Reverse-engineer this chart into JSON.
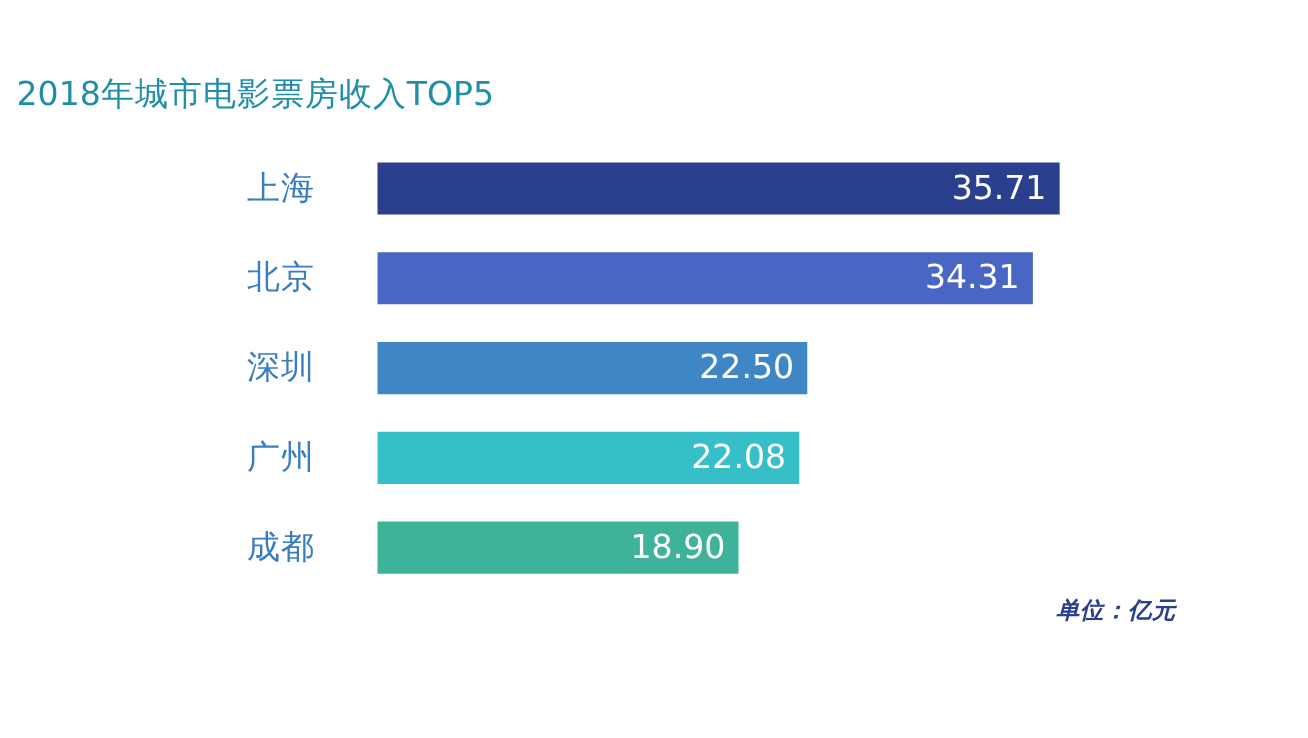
{
  "chart_data": {
    "type": "bar",
    "orientation": "horizontal",
    "title": "2018年城市电影票房收入TOP5",
    "categories": [
      "上海",
      "北京",
      "深圳",
      "广州",
      "成都"
    ],
    "values": [
      35.71,
      34.31,
      22.5,
      22.08,
      18.9
    ],
    "value_labels": [
      "35.71",
      "34.31",
      "22.50",
      "22.08",
      "18.90"
    ],
    "colors": [
      "#2b3f8f",
      "#4a66c4",
      "#3f86c4",
      "#36bfc8",
      "#3fb39a"
    ],
    "annotations": [
      "单位：亿元"
    ],
    "grid": false
  }
}
